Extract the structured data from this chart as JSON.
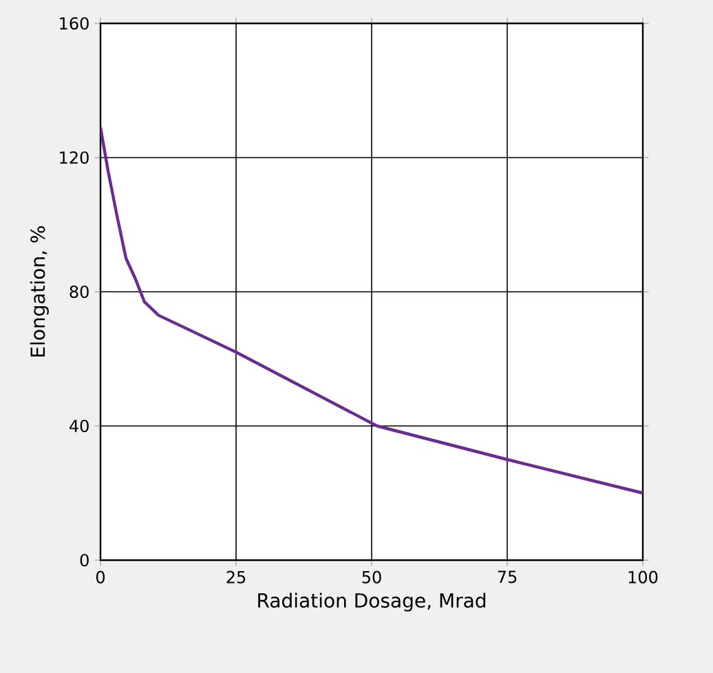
{
  "chart_data": {
    "type": "line",
    "xlabel": "Radiation Dosage, Mrad",
    "ylabel": "Elongation, %",
    "x": [
      0,
      1.4,
      3,
      4.7,
      6.4,
      8.1,
      10.7,
      25,
      51,
      75,
      100
    ],
    "values": [
      129,
      116,
      103,
      90,
      84,
      77,
      73,
      62,
      40,
      30,
      20
    ],
    "color": "#6a2c91",
    "xlim": [
      0,
      100
    ],
    "ylim": [
      0,
      160
    ],
    "xticks": [
      0,
      25,
      50,
      75,
      100
    ],
    "yticks": [
      0,
      40,
      80,
      120,
      160
    ],
    "grid": true,
    "marker": "none",
    "line_style": "solid"
  }
}
